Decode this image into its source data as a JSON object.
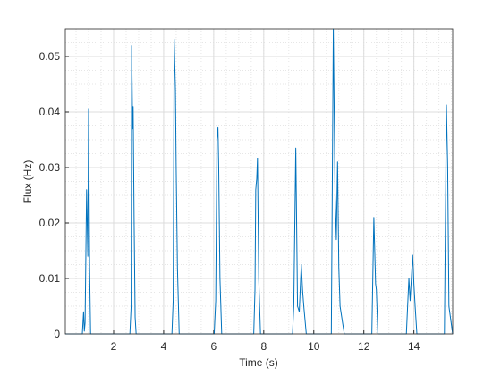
{
  "chart_data": {
    "type": "line",
    "xlabel": "Time (s)",
    "ylabel": "Flux (Hz)",
    "x": [
      0.07,
      0.75,
      0.8,
      0.83,
      0.86,
      0.92,
      0.97,
      1.0,
      1.04,
      1.08,
      2.65,
      2.7,
      2.72,
      2.76,
      2.78,
      2.82,
      2.86,
      2.9,
      4.33,
      4.38,
      4.42,
      4.47,
      4.5,
      4.55,
      4.62,
      6.02,
      6.08,
      6.13,
      6.17,
      6.2,
      6.25,
      6.32,
      7.6,
      7.65,
      7.68,
      7.72,
      7.75,
      7.8,
      7.87,
      9.15,
      9.2,
      9.28,
      9.35,
      9.42,
      9.5,
      9.55,
      9.6,
      9.7,
      10.7,
      10.78,
      10.85,
      10.9,
      10.95,
      11.0,
      11.05,
      11.15,
      11.22,
      12.32,
      12.4,
      12.47,
      12.5,
      12.56,
      13.7,
      13.8,
      13.85,
      13.95,
      14.0,
      14.05,
      14.12,
      15.22,
      15.3,
      15.35,
      15.4,
      15.55
    ],
    "values": [
      0,
      0,
      0.004,
      0.0005,
      0.002,
      0.026,
      0.014,
      0.0405,
      0.012,
      0,
      0,
      0.005,
      0.052,
      0.037,
      0.041,
      0.02,
      0.003,
      0,
      0,
      0.006,
      0.053,
      0.044,
      0.03,
      0.012,
      0,
      0,
      0.006,
      0.035,
      0.0372,
      0.03,
      0.01,
      0,
      0,
      0.008,
      0.026,
      0.028,
      0.0317,
      0.01,
      0,
      0,
      0.005,
      0.0335,
      0.005,
      0.004,
      0.0125,
      0.008,
      0.005,
      0,
      0,
      0.055,
      0.025,
      0.017,
      0.031,
      0.012,
      0.005,
      0.002,
      0,
      0,
      0.021,
      0.009,
      0.008,
      0,
      0,
      0.01,
      0.006,
      0.0142,
      0.009,
      0.005,
      0,
      0,
      0.0413,
      0.03,
      0.005,
      0
    ],
    "color": "#0072bd",
    "xlim": [
      0.07,
      15.55
    ],
    "ylim": [
      0,
      0.055
    ],
    "xticks": [
      2,
      4,
      6,
      8,
      10,
      12,
      14
    ],
    "yticks": [
      0,
      0.01,
      0.02,
      0.03,
      0.04,
      0.05
    ],
    "grid": true,
    "minor_grid": true
  }
}
